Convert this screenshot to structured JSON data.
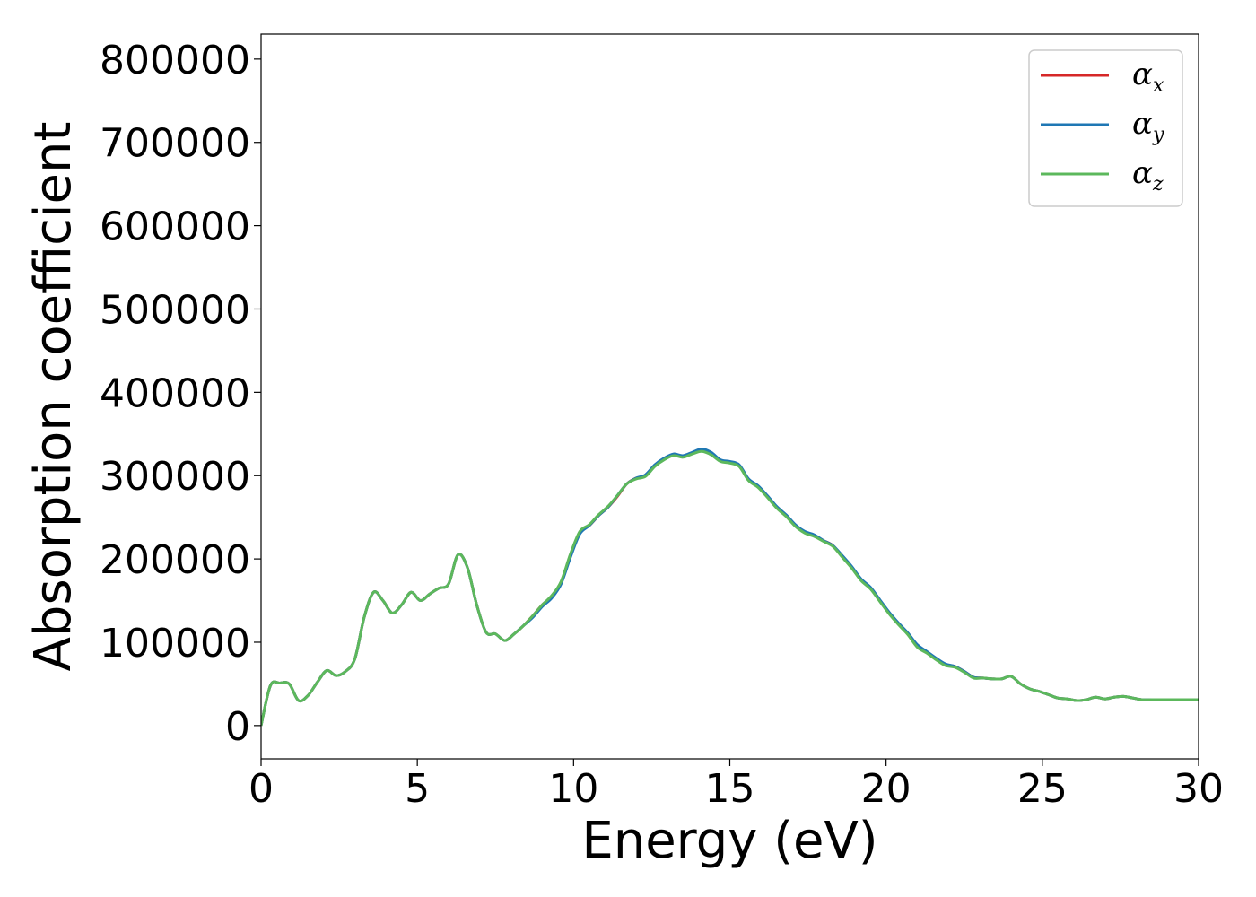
{
  "chart_data": {
    "type": "line",
    "title": "",
    "xlabel": "Energy (eV)",
    "ylabel": "Absorption coefficient",
    "xlim": [
      0,
      30
    ],
    "ylim": [
      -40000,
      830000
    ],
    "xticks": [
      0,
      5,
      10,
      15,
      20,
      25,
      30
    ],
    "yticks": [
      0,
      100000,
      200000,
      300000,
      400000,
      500000,
      600000,
      700000,
      800000
    ],
    "grid": false,
    "legend_position": "top-right",
    "x": [
      0,
      0.3,
      0.6,
      0.9,
      1.2,
      1.5,
      1.8,
      2.1,
      2.4,
      2.7,
      3.0,
      3.3,
      3.6,
      3.9,
      4.2,
      4.5,
      4.8,
      5.1,
      5.4,
      5.7,
      6.0,
      6.3,
      6.6,
      6.9,
      7.2,
      7.5,
      7.8,
      8.1,
      8.4,
      8.7,
      9.0,
      9.3,
      9.6,
      9.9,
      10.2,
      10.5,
      10.8,
      11.1,
      11.4,
      11.7,
      12.0,
      12.3,
      12.6,
      12.9,
      13.2,
      13.5,
      13.8,
      14.1,
      14.4,
      14.7,
      15.0,
      15.3,
      15.6,
      15.9,
      16.2,
      16.5,
      16.8,
      17.1,
      17.4,
      17.7,
      18.0,
      18.3,
      18.6,
      18.9,
      19.2,
      19.5,
      19.8,
      20.1,
      20.4,
      20.7,
      21.0,
      21.3,
      21.6,
      21.9,
      22.2,
      22.5,
      22.8,
      23.1,
      23.4,
      23.7,
      24.0,
      24.3,
      24.6,
      24.9,
      25.2,
      25.5,
      25.8,
      26.1,
      26.4,
      26.7,
      27.0,
      27.3,
      27.6,
      27.9,
      28.2,
      28.5,
      28.8,
      29.1,
      29.4,
      29.7,
      30.0
    ],
    "series": [
      {
        "name": "α_x",
        "color": "#d62728",
        "values": [
          0,
          48000,
          51000,
          50000,
          30000,
          36000,
          52000,
          66000,
          60000,
          65000,
          80000,
          130000,
          160000,
          150000,
          135000,
          145000,
          160000,
          150000,
          158000,
          165000,
          170000,
          205000,
          190000,
          145000,
          112000,
          110000,
          102000,
          110000,
          120000,
          132000,
          145000,
          155000,
          172000,
          205000,
          232000,
          240000,
          252000,
          262000,
          275000,
          290000,
          297000,
          300000,
          312000,
          320000,
          325000,
          323000,
          327000,
          330000,
          326000,
          318000,
          316000,
          312000,
          295000,
          287000,
          275000,
          262000,
          252000,
          240000,
          232000,
          228000,
          222000,
          216000,
          203000,
          190000,
          175000,
          165000,
          150000,
          135000,
          122000,
          110000,
          95000,
          88000,
          80000,
          73000,
          71000,
          65000,
          58000,
          57000,
          56000,
          56000,
          59000,
          50000,
          44000,
          41000,
          37000,
          33000,
          32000,
          30000,
          31000,
          34000,
          32000,
          34000,
          35000,
          33000,
          31000,
          31000,
          31000,
          31000,
          31000,
          31000,
          31000
        ]
      },
      {
        "name": "α_y",
        "color": "#1f77b4",
        "values": [
          0,
          48000,
          51000,
          50000,
          30000,
          36000,
          52000,
          66000,
          60000,
          65000,
          80000,
          130000,
          160000,
          150000,
          135000,
          145000,
          160000,
          150000,
          158000,
          165000,
          170000,
          205000,
          190000,
          145000,
          112000,
          110000,
          102000,
          110000,
          120000,
          130000,
          143000,
          153000,
          170000,
          202000,
          230000,
          240000,
          252000,
          262000,
          276000,
          290000,
          297000,
          301000,
          313000,
          321000,
          326000,
          324000,
          328000,
          332000,
          328000,
          319000,
          317000,
          313000,
          296000,
          288000,
          276000,
          263000,
          253000,
          241000,
          233000,
          229000,
          222000,
          216000,
          204000,
          191000,
          176000,
          166000,
          151000,
          136000,
          123000,
          111000,
          97000,
          89000,
          81000,
          74000,
          71000,
          65000,
          58000,
          57000,
          56000,
          56000,
          59000,
          50000,
          44000,
          41000,
          37000,
          33000,
          32000,
          30000,
          31000,
          34000,
          32000,
          34000,
          35000,
          33000,
          31000,
          31000,
          31000,
          31000,
          31000,
          31000,
          31000
        ]
      },
      {
        "name": "α_z",
        "color": "#5cb85c",
        "values": [
          0,
          48000,
          51000,
          50000,
          30000,
          36000,
          52000,
          66000,
          60000,
          65000,
          80000,
          130000,
          160000,
          150000,
          135000,
          145000,
          160000,
          150000,
          158000,
          165000,
          170000,
          205000,
          190000,
          145000,
          112000,
          110000,
          102000,
          110000,
          120000,
          132000,
          145000,
          156000,
          173000,
          206000,
          233000,
          241000,
          253000,
          263000,
          276000,
          290000,
          296000,
          299000,
          311000,
          319000,
          324000,
          322000,
          326000,
          329000,
          325000,
          317000,
          315000,
          311000,
          294000,
          286000,
          274000,
          261000,
          251000,
          239000,
          231000,
          227000,
          221000,
          215000,
          202000,
          189000,
          174000,
          164000,
          149000,
          134000,
          121000,
          109000,
          94000,
          87000,
          79000,
          72000,
          70000,
          64000,
          57000,
          57000,
          56000,
          56000,
          59000,
          50000,
          44000,
          41000,
          37000,
          33000,
          32000,
          30000,
          31000,
          34000,
          32000,
          34000,
          35000,
          33000,
          31000,
          31000,
          31000,
          31000,
          31000,
          31000,
          31000
        ]
      }
    ]
  },
  "legend": {
    "items": [
      {
        "symbol": "α",
        "sub": "x"
      },
      {
        "symbol": "α",
        "sub": "y"
      },
      {
        "symbol": "α",
        "sub": "z"
      }
    ]
  }
}
